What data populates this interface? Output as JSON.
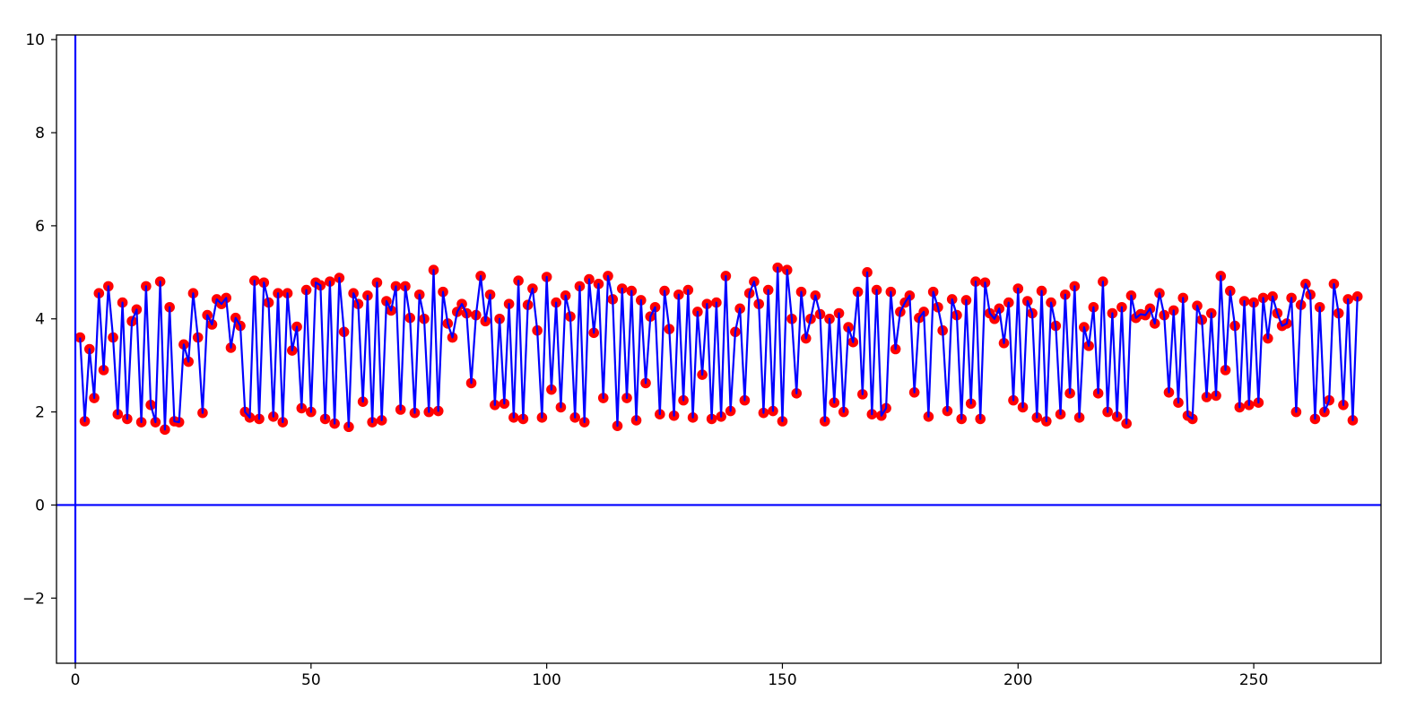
{
  "chart_data": {
    "type": "line",
    "title": "",
    "xlabel": "",
    "ylabel": "",
    "xlim": [
      -4,
      277
    ],
    "ylim": [
      -3.4,
      10.1
    ],
    "x_ticks": [
      0,
      50,
      100,
      150,
      200,
      250
    ],
    "y_ticks": [
      -2,
      0,
      2,
      4,
      6,
      8,
      10
    ],
    "x_tick_labels": [
      "0",
      "50",
      "100",
      "150",
      "200",
      "250"
    ],
    "y_tick_labels": [
      "−2",
      "0",
      "2",
      "4",
      "6",
      "8",
      "10"
    ],
    "grid": false,
    "legend": "none",
    "reference_lines": {
      "vertical_x": 0,
      "horizontal_y": 0
    },
    "colors": {
      "line": "#0000ff",
      "marker": "#ff0000",
      "axis_lines": "#0000ff",
      "frame": "#000000"
    },
    "series": [
      {
        "x_start": 1,
        "x_step": 1,
        "y": [
          3.6,
          1.8,
          3.35,
          2.3,
          4.55,
          2.9,
          4.7,
          3.6,
          1.95,
          4.35,
          1.85,
          3.95,
          4.2,
          1.78,
          4.7,
          2.15,
          1.78,
          4.8,
          1.62,
          4.25,
          1.8,
          1.78,
          3.45,
          3.08,
          4.55,
          3.6,
          1.98,
          4.08,
          3.88,
          4.42,
          4.32,
          4.45,
          3.38,
          4.02,
          3.85,
          2.0,
          1.88,
          4.82,
          1.85,
          4.78,
          4.35,
          1.9,
          4.55,
          1.78,
          4.55,
          3.32,
          3.83,
          2.08,
          4.62,
          2.0,
          4.78,
          4.72,
          1.85,
          4.8,
          1.75,
          4.88,
          3.72,
          1.68,
          4.55,
          4.32,
          2.22,
          4.5,
          1.78,
          4.78,
          1.82,
          4.38,
          4.18,
          4.7,
          2.05,
          4.7,
          4.02,
          1.98,
          4.52,
          4.0,
          2.0,
          5.05,
          2.02,
          4.58,
          3.9,
          3.6,
          4.15,
          4.32,
          4.12,
          2.62,
          4.08,
          4.92,
          3.95,
          4.52,
          2.15,
          4.0,
          2.18,
          4.32,
          1.88,
          4.82,
          1.85,
          4.3,
          4.65,
          3.75,
          1.88,
          4.9,
          2.48,
          4.35,
          2.1,
          4.5,
          4.05,
          1.88,
          4.7,
          1.78,
          4.85,
          3.7,
          4.75,
          2.3,
          4.92,
          4.42,
          1.7,
          4.65,
          2.3,
          4.6,
          1.82,
          4.4,
          2.62,
          4.05,
          4.25,
          1.95,
          4.6,
          3.78,
          1.92,
          4.52,
          2.25,
          4.62,
          1.88,
          4.15,
          2.8,
          4.32,
          1.85,
          4.35,
          1.9,
          4.92,
          2.02,
          3.72,
          4.22,
          2.25,
          4.55,
          4.8,
          4.32,
          1.98,
          4.62,
          2.02,
          5.1,
          1.8,
          5.05,
          4.0,
          2.4,
          4.58,
          3.58,
          4.0,
          4.5,
          4.1,
          1.8,
          4.0,
          2.2,
          4.12,
          2.0,
          3.82,
          3.5,
          4.58,
          2.38,
          5.0,
          1.95,
          4.62,
          1.92,
          2.08,
          4.58,
          3.35,
          4.15,
          4.35,
          4.5,
          2.42,
          4.02,
          4.15,
          1.9,
          4.58,
          4.25,
          3.75,
          2.02,
          4.42,
          4.08,
          1.85,
          4.4,
          2.18,
          4.8,
          1.85,
          4.78,
          4.12,
          4.0,
          4.22,
          3.48,
          4.35,
          2.25,
          4.65,
          2.1,
          4.38,
          4.12,
          1.88,
          4.6,
          1.8,
          4.35,
          3.85,
          1.95,
          4.52,
          2.4,
          4.7,
          1.88,
          3.82,
          3.42,
          4.25,
          2.4,
          4.8,
          2.0,
          4.12,
          1.9,
          4.25,
          1.75,
          4.5,
          4.02,
          4.1,
          4.08,
          4.22,
          3.9,
          4.55,
          4.08,
          2.42,
          4.18,
          2.2,
          4.45,
          1.92,
          1.85,
          4.28,
          3.98,
          2.32,
          4.12,
          2.35,
          4.92,
          2.9,
          4.6,
          3.85,
          2.1,
          4.38,
          2.15,
          4.35,
          2.2,
          4.45,
          3.58,
          4.48,
          4.12,
          3.85,
          3.9,
          4.45,
          2.0,
          4.3,
          4.75,
          4.52,
          1.85,
          4.25,
          2.0,
          2.25,
          4.75,
          4.12,
          2.15,
          4.42,
          1.82,
          4.48
        ]
      }
    ]
  }
}
